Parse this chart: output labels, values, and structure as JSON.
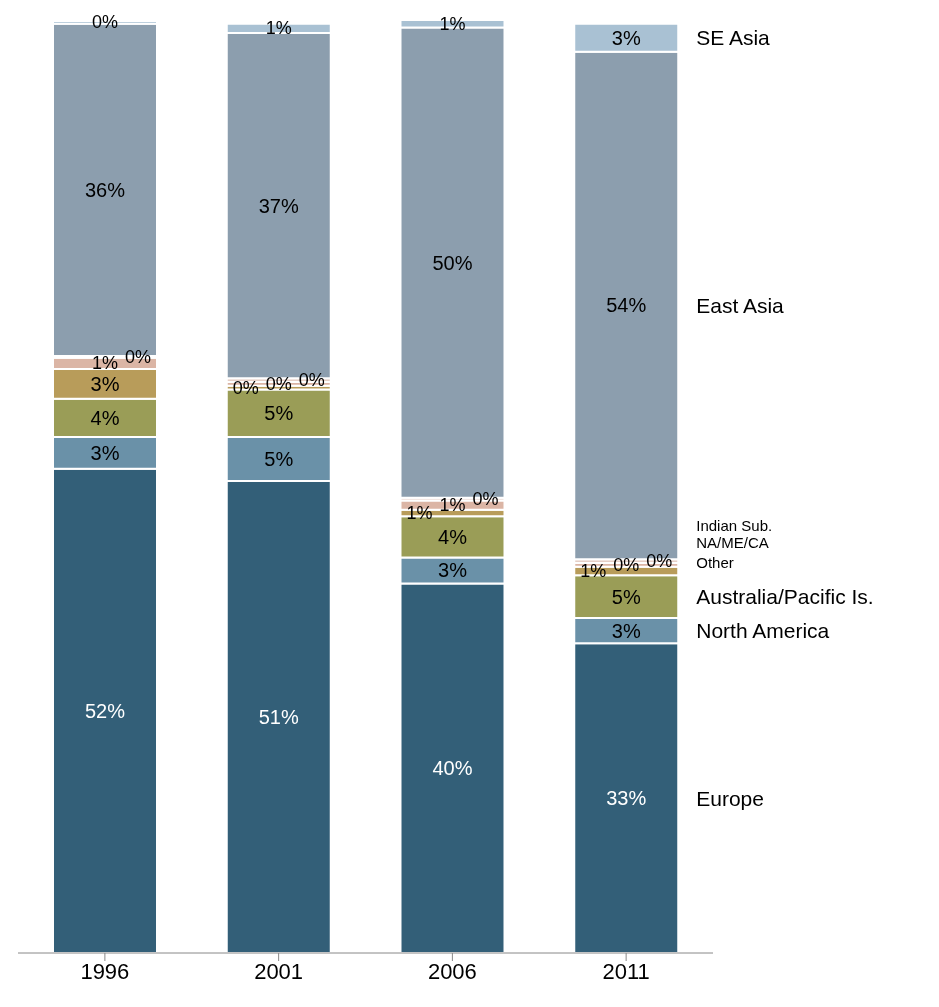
{
  "chart_data": {
    "type": "bar",
    "stacked": true,
    "categories": [
      "1996",
      "2001",
      "2006",
      "2011"
    ],
    "series": [
      {
        "name": "Europe",
        "color": "#335f78",
        "values": [
          51.9,
          50.6,
          39.6,
          33.2
        ],
        "value_labels": [
          "52%",
          "51%",
          "40%",
          "33%"
        ]
      },
      {
        "name": "North America",
        "color": "#6a91a8",
        "values": [
          3.4,
          4.7,
          2.8,
          2.7
        ],
        "value_labels": [
          "3%",
          "5%",
          "3%",
          "3%"
        ]
      },
      {
        "name": "Australia/Pacific  Is.",
        "color": "#9a9d57",
        "values": [
          4.1,
          5.1,
          4.4,
          4.6
        ],
        "value_labels": [
          "4%",
          "5%",
          "4%",
          "5%"
        ]
      },
      {
        "name": "Other",
        "color": "#b89c5a",
        "values": [
          3.2,
          0.4,
          0.7,
          0.9
        ],
        "value_labels": [
          "3%",
          "0%",
          "1%",
          "1%"
        ]
      },
      {
        "name": "NA/ME/CA",
        "color": "#dbb5a5",
        "values": [
          1.2,
          0.4,
          1.0,
          0.4
        ],
        "value_labels": [
          "1%",
          "0%",
          "1%",
          "0%"
        ]
      },
      {
        "name": "Indian Sub.",
        "color": "#e6cfc6",
        "values": [
          0.2,
          0.4,
          0.3,
          0.4
        ],
        "value_labels": [
          "0%",
          "0%",
          "0%",
          "0%"
        ]
      },
      {
        "name": "East Asia",
        "color": "#8c9eae",
        "values": [
          35.6,
          37.0,
          50.4,
          54.4
        ],
        "value_labels": [
          "36%",
          "37%",
          "50%",
          "54%"
        ]
      },
      {
        "name": "SE Asia",
        "color": "#a9c1d3",
        "values": [
          0.3,
          1.0,
          0.8,
          3.0
        ],
        "value_labels": [
          "0%",
          "1%",
          "1%",
          "3%"
        ]
      }
    ]
  }
}
